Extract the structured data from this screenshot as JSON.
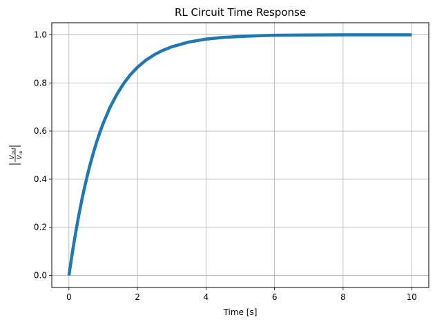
{
  "chart_data": {
    "type": "line",
    "title": "RL Circuit Time Response",
    "xlabel": "Time [s]",
    "ylabel": {
      "numerator": "V",
      "numerator_sub": "out",
      "denominator": "V",
      "denominator_sub": "in"
    },
    "xlim": [
      -0.5,
      10.5
    ],
    "ylim": [
      -0.05,
      1.05
    ],
    "xticks": [
      0,
      2,
      4,
      6,
      8,
      10
    ],
    "xtick_labels": [
      "0",
      "2",
      "4",
      "6",
      "8",
      "10"
    ],
    "yticks": [
      0.0,
      0.2,
      0.4,
      0.6,
      0.8,
      1.0
    ],
    "ytick_labels": [
      "0.0",
      "0.2",
      "0.4",
      "0.6",
      "0.8",
      "1.0"
    ],
    "grid": true,
    "series": [
      {
        "color": "#1f77b4",
        "x": [
          0,
          0.1,
          0.2,
          0.3,
          0.4,
          0.5,
          0.6,
          0.7,
          0.8,
          0.9,
          1.0,
          1.2,
          1.4,
          1.6,
          1.8,
          2.0,
          2.25,
          2.5,
          2.75,
          3.0,
          3.5,
          4.0,
          4.5,
          5.0,
          5.5,
          6.0,
          7.0,
          8.0,
          9.0,
          10.0
        ],
        "y": [
          0.0,
          0.095,
          0.181,
          0.259,
          0.33,
          0.393,
          0.451,
          0.503,
          0.551,
          0.593,
          0.632,
          0.699,
          0.753,
          0.798,
          0.835,
          0.865,
          0.895,
          0.918,
          0.936,
          0.95,
          0.97,
          0.982,
          0.989,
          0.993,
          0.996,
          0.998,
          0.999,
          1.0,
          1.0,
          1.0
        ]
      }
    ]
  }
}
